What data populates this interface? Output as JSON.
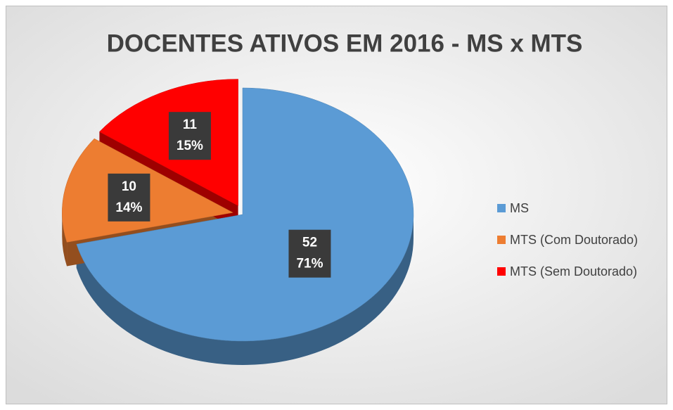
{
  "chart_data": {
    "type": "pie",
    "title": "DOCENTES ATIVOS EM 2016 - MS x MTS",
    "categories": [
      "MS",
      "MTS (Com Doutorado)",
      "MTS (Sem Doutorado)"
    ],
    "values": [
      52,
      10,
      11
    ],
    "percent_labels": [
      "71%",
      "14%",
      "15%"
    ],
    "colors": [
      "#5b9bd5",
      "#ed7d31",
      "#ff0000"
    ],
    "legend": "right"
  }
}
